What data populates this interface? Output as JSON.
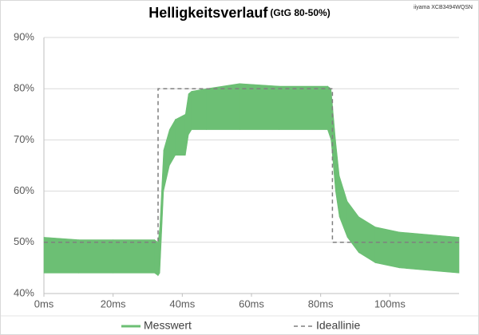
{
  "chart_data": {
    "type": "band",
    "title": "Helligkeitsverlauf",
    "subtitle": "(GtG 80-50%)",
    "annotation": "iiyama XCB3494WQSN",
    "xlim": [
      0,
      120
    ],
    "xticks": [
      {
        "value": 0,
        "label": "0ms"
      },
      {
        "value": 20,
        "label": "20ms"
      },
      {
        "value": 40,
        "label": "40ms"
      },
      {
        "value": 60,
        "label": "60ms"
      },
      {
        "value": 80,
        "label": "80ms"
      },
      {
        "value": 100,
        "label": "100ms"
      }
    ],
    "ylim": [
      40,
      90
    ],
    "yticks": [
      {
        "value": 40,
        "label": "40%"
      },
      {
        "value": 50,
        "label": "50%"
      },
      {
        "value": 60,
        "label": "60%"
      },
      {
        "value": 70,
        "label": "70%"
      },
      {
        "value": 80,
        "label": "80%"
      },
      {
        "value": 90,
        "label": "90%"
      }
    ],
    "grid": true,
    "legend": "bottom",
    "series": [
      {
        "name": "Messwert",
        "color": "#6cbf74",
        "x": [
          0,
          10,
          20,
          32,
          33,
          33.5,
          34.6,
          36.3,
          38,
          40.9,
          41.8,
          42.7,
          47,
          56.6,
          68,
          82,
          83,
          84.3,
          85.4,
          87.7,
          91,
          95.8,
          102.8,
          120
        ],
        "low": [
          44,
          44,
          44,
          44,
          43.5,
          44,
          60,
          65,
          67,
          67,
          71,
          72,
          72,
          72,
          72,
          72,
          70,
          60,
          55,
          51,
          48,
          46,
          45,
          44
        ],
        "high": [
          51,
          50.5,
          50.5,
          50.5,
          50,
          53,
          68,
          72,
          74,
          75,
          79,
          79.5,
          80,
          81,
          80.5,
          80.5,
          80,
          70,
          63,
          58,
          55,
          53,
          52,
          51
        ]
      },
      {
        "name": "Ideallinie",
        "color": "#7f7f7f",
        "dashed": true,
        "x": [
          0,
          33,
          33,
          83.4,
          83.4,
          120
        ],
        "values": [
          50,
          50,
          80,
          80,
          50,
          50
        ]
      }
    ]
  }
}
